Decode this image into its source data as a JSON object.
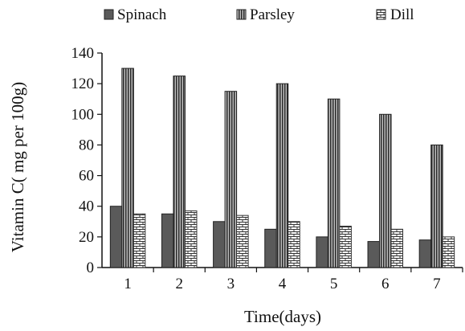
{
  "chart_data": {
    "type": "bar",
    "title": "",
    "xlabel": "Time(days)",
    "ylabel": "Vitamin C( mg per 100g)",
    "ylim": [
      0,
      140
    ],
    "yticks": [
      0,
      20,
      40,
      60,
      80,
      100,
      120,
      140
    ],
    "categories": [
      "1",
      "2",
      "3",
      "4",
      "5",
      "6",
      "7"
    ],
    "series": [
      {
        "name": "Spinach",
        "values": [
          40,
          35,
          30,
          25,
          20,
          17,
          18
        ],
        "fill": "solid-dark-gray"
      },
      {
        "name": "Parsley",
        "values": [
          130,
          125,
          115,
          120,
          110,
          100,
          80
        ],
        "fill": "vertical-stripes"
      },
      {
        "name": "Dill",
        "values": [
          35,
          37,
          34,
          30,
          27,
          25,
          20
        ],
        "fill": "brick-pattern"
      }
    ],
    "grid": false,
    "legend_position": "top"
  },
  "colors": {
    "spinach": "#5a5a5a",
    "parsley_dark": "#2a2a2a",
    "parsley_light": "#bdbdbd",
    "dill_line": "#333333",
    "dill_bg": "#ffffff",
    "axis": "#111111"
  }
}
